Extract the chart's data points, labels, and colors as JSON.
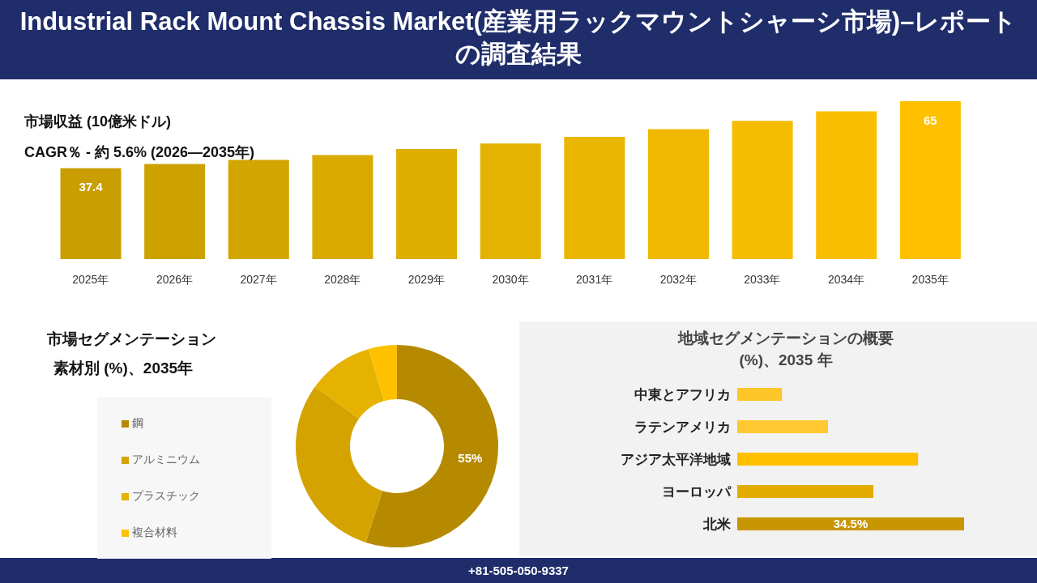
{
  "chart_data": [
    {
      "type": "bar",
      "title": "Industrial Rack Mount Chassis Market(産業用ラックマウントシャーシ市場)–レポートの調査結果",
      "ylabel": "市場収益 (10億米ドル)",
      "subtitle": "CAGR％ - 約 5.6% (2026—2035年)",
      "categories": [
        "2025年",
        "2026年",
        "2027年",
        "2028年",
        "2029年",
        "2030年",
        "2031年",
        "2032年",
        "2033年",
        "2034年",
        "2035年"
      ],
      "values": [
        37.4,
        39.2,
        40.8,
        42.8,
        45.3,
        47.6,
        50.3,
        53.5,
        56.9,
        60.8,
        65
      ],
      "colors": [
        "#c99e00",
        "#cda100",
        "#d2a500",
        "#d8aa00",
        "#deae00",
        "#e4b200",
        "#eab600",
        "#f0b900",
        "#f5bc00",
        "#fabe00",
        "#ffc000"
      ],
      "value_labels": [
        "37.4",
        null,
        null,
        null,
        null,
        null,
        null,
        null,
        null,
        null,
        "65"
      ],
      "annotations": [
        "+81-505-050-9337"
      ]
    },
    {
      "type": "donut",
      "title": "市場セグメンテーション",
      "subtitle": "素材別 (%)、2035年",
      "categories": [
        "鋼",
        "アルミニウム",
        "プラスチック",
        "複合材料"
      ],
      "values": [
        55,
        30,
        10.5,
        4.5
      ],
      "colors": [
        "#b58a00",
        "#d4a300",
        "#e6b200",
        "#ffc000"
      ],
      "value_labels": [
        "55%",
        null,
        null,
        null
      ],
      "legend": "left"
    },
    {
      "type": "bar",
      "orientation": "horizontal",
      "title": "地域セグメンテーションの概要 (%)、2035 年",
      "categories": [
        "中東とアフリカ",
        "ラテンアメリカ",
        "アジア太平洋地域",
        "ヨーロッパ",
        "北米"
      ],
      "values": [
        6.8,
        13.8,
        27.5,
        20.7,
        34.5
      ],
      "colors": [
        "#ffc62a",
        "#ffc830",
        "#ffc000",
        "#e3ac00",
        "#c89600"
      ],
      "value_labels": [
        null,
        null,
        null,
        null,
        "34.5%"
      ]
    }
  ]
}
